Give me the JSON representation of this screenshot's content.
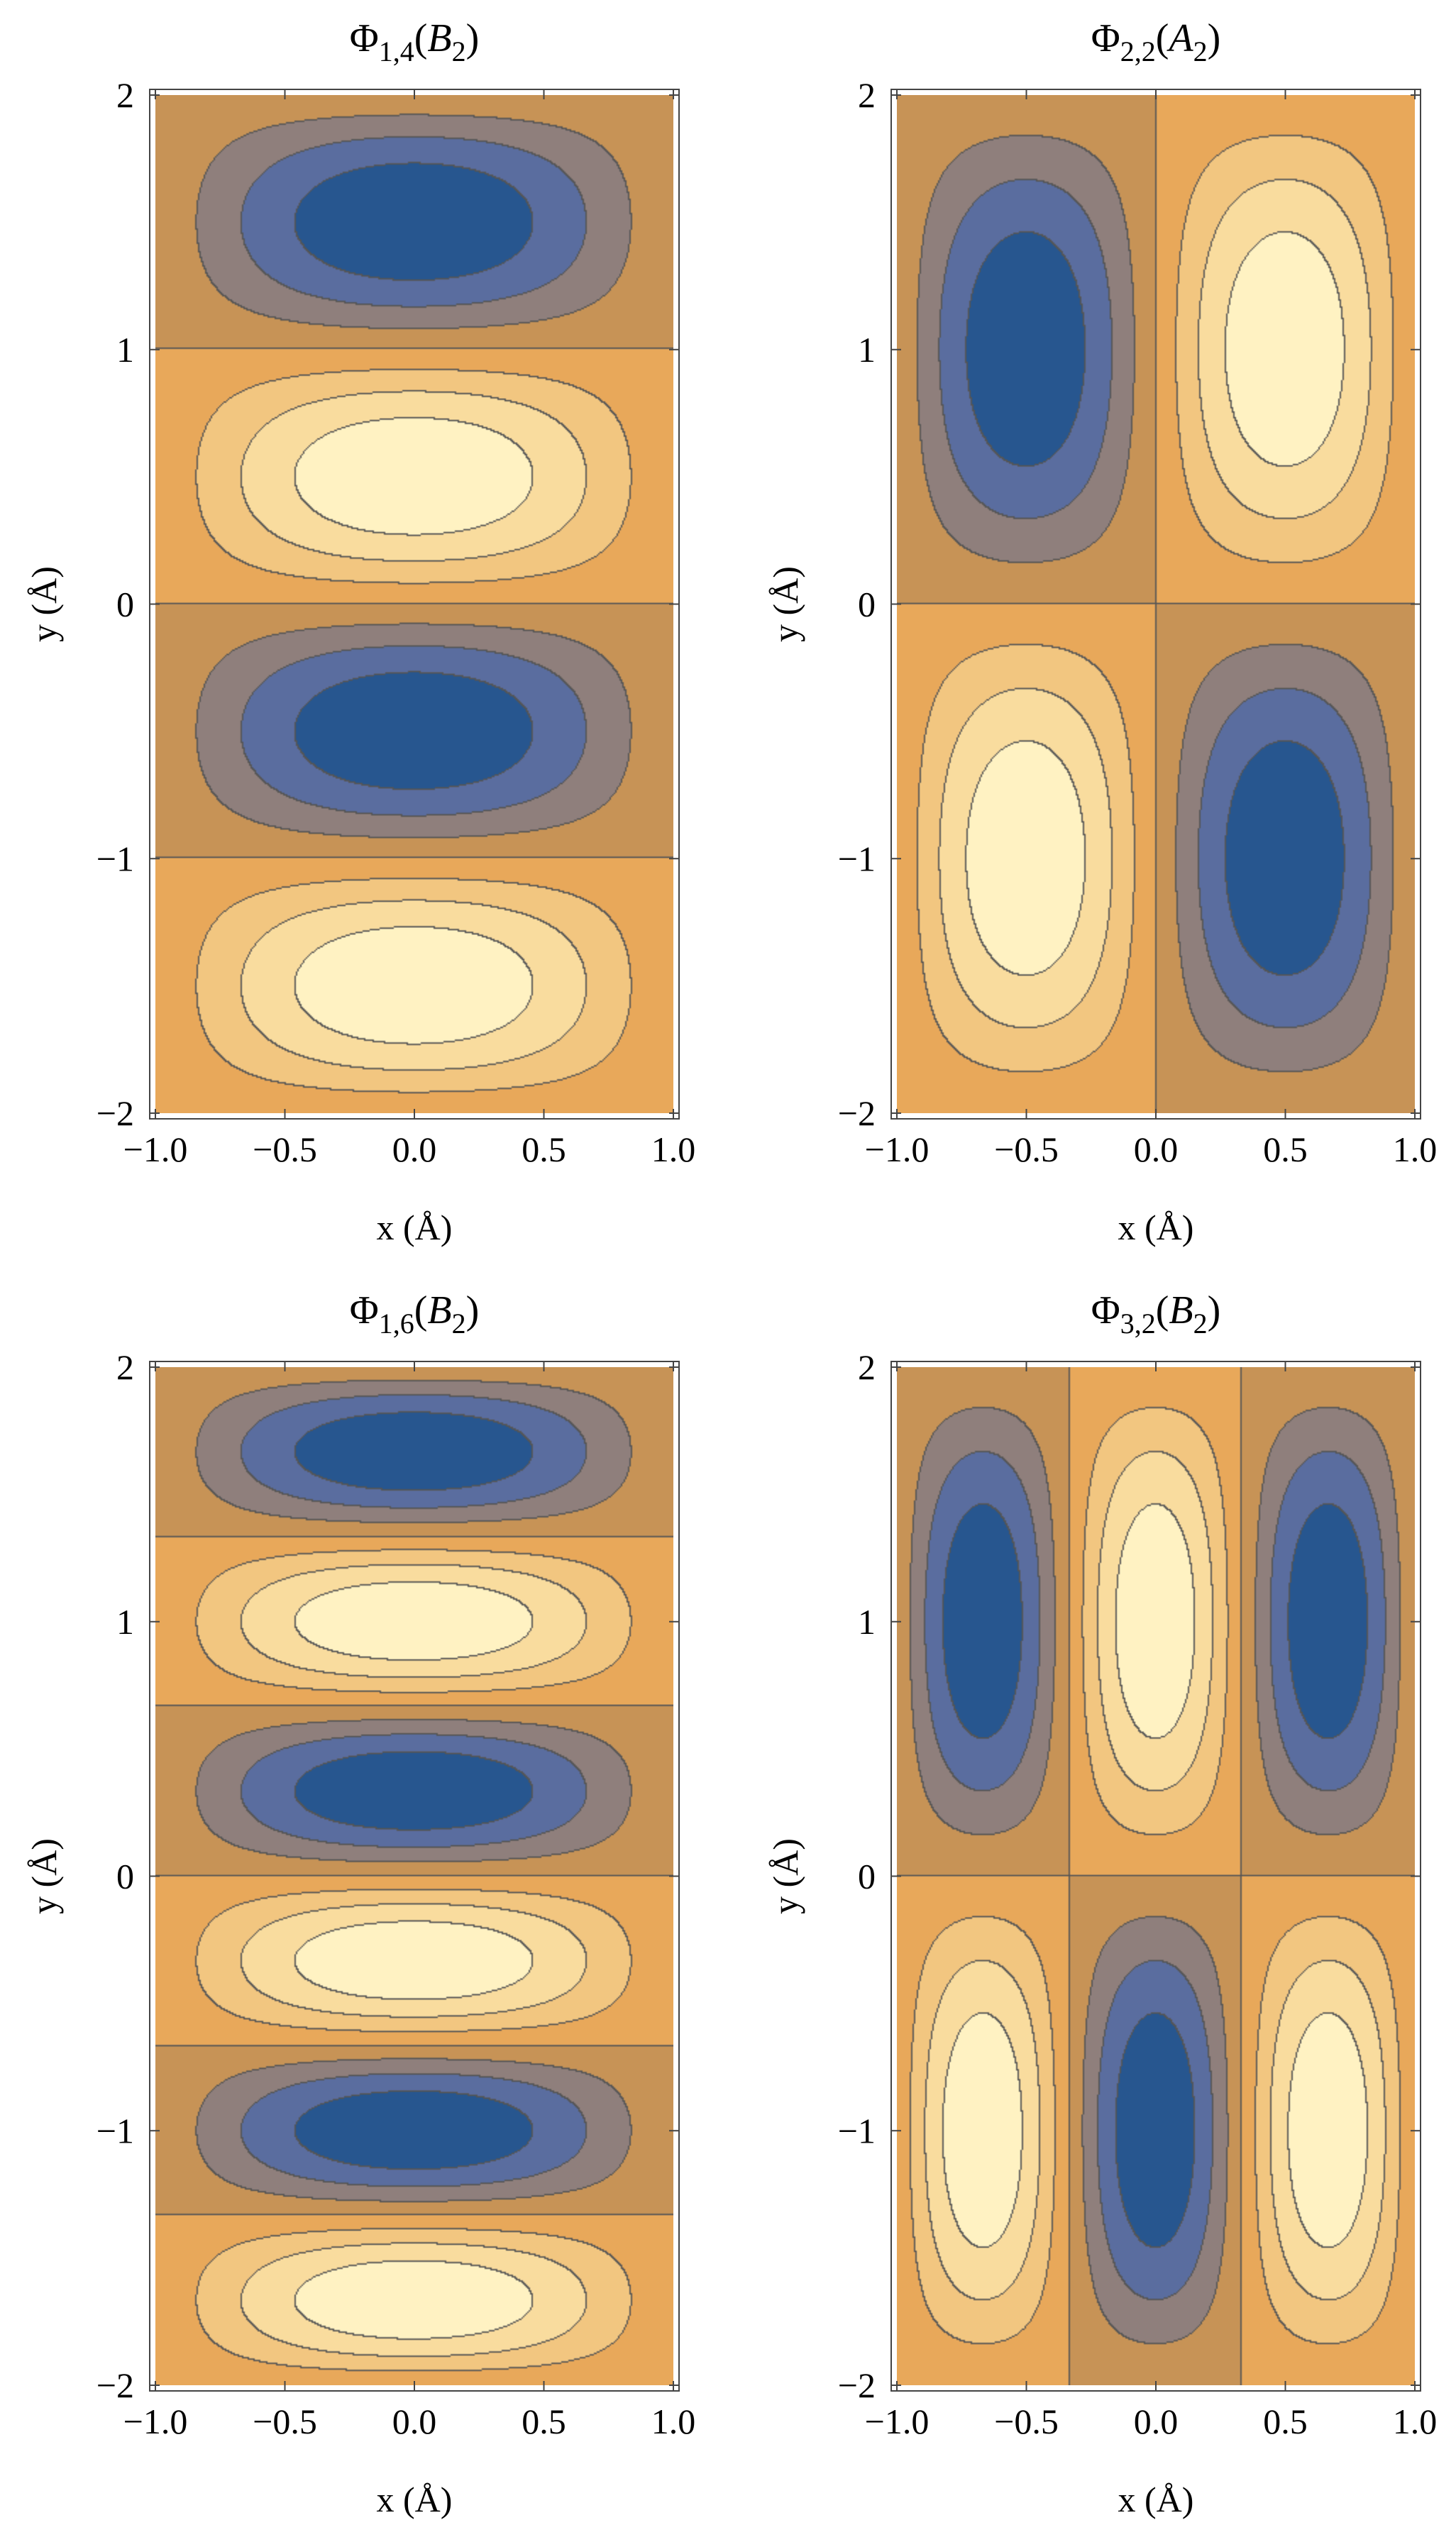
{
  "chart_data": [
    {
      "type": "contour",
      "title": "Φ1,4(B2)",
      "title_main": "Φ",
      "title_sub": "1,4",
      "title_paren_open": "(",
      "title_arg": "B",
      "title_arg_sub": "2",
      "title_paren_close": ")",
      "xlabel": "x (Å)",
      "ylabel": "y (Å)",
      "xlim": [
        -1,
        1
      ],
      "ylim": [
        -2,
        2
      ],
      "xticks": [
        -1.0,
        -0.5,
        0.0,
        0.5,
        1.0
      ],
      "xtick_labels": [
        "−1.0",
        "−0.5",
        "0.0",
        "0.5",
        "1.0"
      ],
      "yticks": [
        -2,
        -1,
        0,
        1,
        2
      ],
      "ytick_labels": [
        "−2",
        "−1",
        "0",
        "1",
        "2"
      ],
      "mode_x": 1,
      "mode_y": 4,
      "function": "sin(n_x·π·(x+1)/2) · sin(n_y·π·(y+2)/4)",
      "levels": 7
    },
    {
      "type": "contour",
      "title": "Φ2,2(A2)",
      "title_main": "Φ",
      "title_sub": "2,2",
      "title_paren_open": "(",
      "title_arg": "A",
      "title_arg_sub": "2",
      "title_paren_close": ")",
      "xlabel": "x (Å)",
      "ylabel": "y (Å)",
      "xlim": [
        -1,
        1
      ],
      "ylim": [
        -2,
        2
      ],
      "xticks": [
        -1.0,
        -0.5,
        0.0,
        0.5,
        1.0
      ],
      "xtick_labels": [
        "−1.0",
        "−0.5",
        "0.0",
        "0.5",
        "1.0"
      ],
      "yticks": [
        -2,
        -1,
        0,
        1,
        2
      ],
      "ytick_labels": [
        "−2",
        "−1",
        "0",
        "1",
        "2"
      ],
      "mode_x": 2,
      "mode_y": 2,
      "function": "sin(n_x·π·(x+1)/2) · sin(n_y·π·(y+2)/4)",
      "levels": 7
    },
    {
      "type": "contour",
      "title": "Φ1,6(B2)",
      "title_main": "Φ",
      "title_sub": "1,6",
      "title_paren_open": "(",
      "title_arg": "B",
      "title_arg_sub": "2",
      "title_paren_close": ")",
      "xlabel": "x (Å)",
      "ylabel": "y (Å)",
      "xlim": [
        -1,
        1
      ],
      "ylim": [
        -2,
        2
      ],
      "xticks": [
        -1.0,
        -0.5,
        0.0,
        0.5,
        1.0
      ],
      "xtick_labels": [
        "−1.0",
        "−0.5",
        "0.0",
        "0.5",
        "1.0"
      ],
      "yticks": [
        -2,
        -1,
        0,
        1,
        2
      ],
      "ytick_labels": [
        "−2",
        "−1",
        "0",
        "1",
        "2"
      ],
      "mode_x": 1,
      "mode_y": 6,
      "function": "sin(n_x·π·(x+1)/2) · sin(n_y·π·(y+2)/4)",
      "levels": 7
    },
    {
      "type": "contour",
      "title": "Φ3,2(B2)",
      "title_main": "Φ",
      "title_sub": "3,2",
      "title_paren_open": "(",
      "title_arg": "B",
      "title_arg_sub": "2",
      "title_paren_close": ")",
      "xlabel": "x (Å)",
      "ylabel": "y (Å)",
      "xlim": [
        -1,
        1
      ],
      "ylim": [
        -2,
        2
      ],
      "xticks": [
        -1.0,
        -0.5,
        0.0,
        0.5,
        1.0
      ],
      "xtick_labels": [
        "−1.0",
        "−0.5",
        "0.0",
        "0.5",
        "1.0"
      ],
      "yticks": [
        -2,
        -1,
        0,
        1,
        2
      ],
      "ytick_labels": [
        "−2",
        "−1",
        "0",
        "1",
        "2"
      ],
      "mode_x": 3,
      "mode_y": 2,
      "function": "sin(n_x·π·(x+1)/2) · sin(n_y·π·(y+2)/4)",
      "levels": 7
    }
  ],
  "colors": {
    "level_1_min": "#27568f",
    "level_2": "#5a6d9f",
    "level_3": "#8f7f7c",
    "level_4_neg_near_zero": "#c79356",
    "level_5_pos_near_zero": "#e8a85a",
    "level_6": "#f2c680",
    "level_7": "#f9dc9e",
    "level_8_max": "#fff2c2",
    "contour_line": "#555555",
    "frame": "#444444"
  }
}
